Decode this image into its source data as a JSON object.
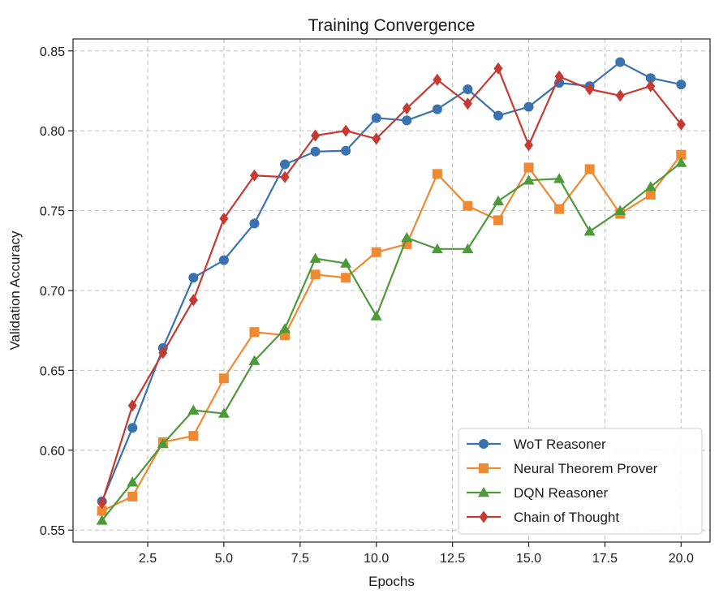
{
  "chart_data": {
    "type": "line",
    "title": "Training Convergence",
    "xlabel": "Epochs",
    "ylabel": "Validation Accuracy",
    "xlim": [
      0.05,
      20.95
    ],
    "ylim": [
      0.5425,
      0.8575
    ],
    "xticks": [
      2.5,
      5.0,
      7.5,
      10.0,
      12.5,
      15.0,
      17.5,
      20.0
    ],
    "xtick_labels": [
      "2.5",
      "5.0",
      "7.5",
      "10.0",
      "12.5",
      "15.0",
      "17.5",
      "20.0"
    ],
    "yticks": [
      0.55,
      0.6,
      0.65,
      0.7,
      0.75,
      0.8,
      0.85
    ],
    "ytick_labels": [
      "0.55",
      "0.60",
      "0.65",
      "0.70",
      "0.75",
      "0.80",
      "0.85"
    ],
    "grid": true,
    "legend_position": "bottom-right",
    "x": [
      1,
      2,
      3,
      4,
      5,
      6,
      7,
      8,
      9,
      10,
      11,
      12,
      13,
      14,
      15,
      16,
      17,
      18,
      19,
      20
    ],
    "series": [
      {
        "name": "WoT Reasoner",
        "color": "#3a72b0",
        "marker": "circle",
        "values": [
          0.568,
          0.614,
          0.664,
          0.708,
          0.719,
          0.742,
          0.779,
          0.787,
          0.7875,
          0.808,
          0.8065,
          0.8135,
          0.826,
          0.8095,
          0.815,
          0.83,
          0.828,
          0.843,
          0.833,
          0.829
        ]
      },
      {
        "name": "Neural Theorem Prover",
        "color": "#ef8a33",
        "marker": "square",
        "values": [
          0.562,
          0.571,
          0.605,
          0.609,
          0.645,
          0.674,
          0.672,
          0.71,
          0.708,
          0.724,
          0.729,
          0.773,
          0.753,
          0.744,
          0.777,
          0.751,
          0.776,
          0.748,
          0.76,
          0.785
        ]
      },
      {
        "name": "DQN Reasoner",
        "color": "#4c9a3a",
        "marker": "triangle",
        "values": [
          0.556,
          0.58,
          0.604,
          0.625,
          0.623,
          0.656,
          0.676,
          0.72,
          0.717,
          0.684,
          0.733,
          0.726,
          0.726,
          0.756,
          0.769,
          0.77,
          0.737,
          0.75,
          0.765,
          0.78
        ]
      },
      {
        "name": "Chain of Thought",
        "color": "#c53a32",
        "marker": "diamond",
        "values": [
          0.567,
          0.628,
          0.661,
          0.694,
          0.745,
          0.772,
          0.771,
          0.797,
          0.8,
          0.795,
          0.814,
          0.832,
          0.817,
          0.839,
          0.791,
          0.834,
          0.826,
          0.822,
          0.828,
          0.804
        ]
      }
    ]
  }
}
